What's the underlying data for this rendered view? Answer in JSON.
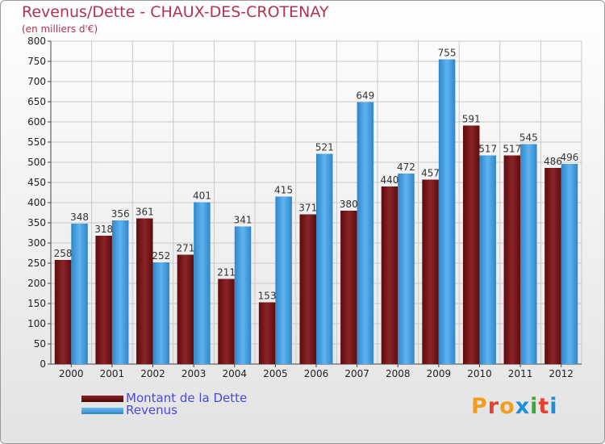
{
  "chart_data": {
    "type": "bar",
    "title": "Revenus/Dette - CHAUX-DES-CROTENAY",
    "subtitle": "(en milliers d'€)",
    "categories": [
      "2000",
      "2001",
      "2002",
      "2003",
      "2004",
      "2005",
      "2006",
      "2007",
      "2008",
      "2009",
      "2010",
      "2011",
      "2012"
    ],
    "series": [
      {
        "name": "Montant de la Dette",
        "color": "#7a1518",
        "values": [
          258,
          318,
          361,
          271,
          211,
          153,
          371,
          380,
          440,
          457,
          591,
          517,
          486
        ]
      },
      {
        "name": "Revenus",
        "color": "#4aa2e6",
        "values": [
          348,
          356,
          252,
          401,
          341,
          415,
          521,
          649,
          472,
          755,
          517,
          545,
          496
        ]
      }
    ],
    "ylim": [
      0,
      800
    ],
    "yticks": [
      0,
      50,
      100,
      150,
      200,
      250,
      300,
      350,
      400,
      450,
      500,
      550,
      600,
      650,
      700,
      750,
      800
    ],
    "grid": true,
    "legend_position": "bottom-left"
  },
  "branding": {
    "logo_text": "Proxiti",
    "logo_colors": [
      "#f39c1f",
      "#e8402e",
      "#f39c1f",
      "#1e8fd6",
      "#3aaa35",
      "#e8402e",
      "#1e8fd6"
    ]
  }
}
